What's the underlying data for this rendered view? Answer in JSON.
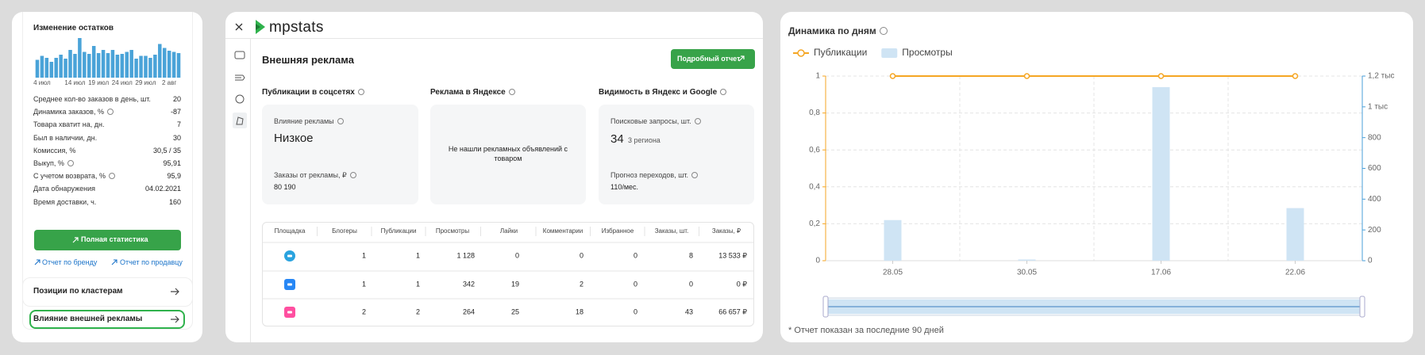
{
  "stock_panel": {
    "title": "Изменение остатков",
    "mini_chart": {
      "color": "#4aa3d8",
      "categories": [
        null,
        "4 июл",
        null,
        null,
        null,
        null,
        null,
        null,
        "14 июл",
        null,
        null,
        null,
        null,
        "19 июл",
        null,
        null,
        null,
        null,
        "24 июл",
        null,
        null,
        null,
        null,
        "29 июл",
        null,
        null,
        null,
        null,
        "2 авг",
        null,
        null
      ],
      "values": [
        45,
        55,
        50,
        40,
        50,
        58,
        48,
        70,
        60,
        100,
        65,
        60,
        80,
        62,
        70,
        62,
        70,
        58,
        60,
        65,
        70,
        48,
        55,
        55,
        50,
        58,
        85,
        75,
        68,
        65,
        62
      ]
    },
    "stats": [
      {
        "label": "Среднее кол-во заказов в день, шт.",
        "value": "20",
        "info": false
      },
      {
        "label": "Динамика заказов, %",
        "value": "-87",
        "info": true
      },
      {
        "label": "Товара хватит на, дн.",
        "value": "7",
        "info": false
      },
      {
        "label": "Был в наличии, дн.",
        "value": "30",
        "info": false
      },
      {
        "label": "Комиссия, %",
        "value": "30,5 / 35",
        "info": false
      },
      {
        "label": "Выкуп, %",
        "value": "95,91",
        "info": true
      },
      {
        "label": "С учетом возврата, %",
        "value": "95,9",
        "info": true
      },
      {
        "label": "Дата обнаружения",
        "value": "04.02.2021",
        "info": false
      },
      {
        "label": "Время доставки, ч.",
        "value": "160",
        "info": false
      }
    ],
    "button": "Полная статистика",
    "links": [
      "Отчет по бренду",
      "Отчет по продавцу"
    ],
    "sections": [
      "Позиции по кластерам",
      "Влияние внешней рекламы"
    ]
  },
  "ad_panel": {
    "logo": "mpstats",
    "title": "Внешняя реклама",
    "report_button": "Подробный отчет",
    "cards": [
      {
        "heading": "Публикации в соцсетях",
        "label1": "Влияние рекламы",
        "value1": "Низкое",
        "label2": "Заказы от рекламы, ₽",
        "value2": "80 190"
      },
      {
        "heading": "Реклама в Яндексе",
        "message": "Не нашли рекламных объявлений с товаром"
      },
      {
        "heading": "Видимость в Яндекс и Google",
        "label1": "Поисковые запросы, шт.",
        "value1": "34",
        "note": "3 региона",
        "label2": "Прогноз переходов, шт.",
        "value2": "110/мес."
      }
    ],
    "table": {
      "header": [
        "Площадка",
        "Блогеры",
        "Публикации",
        "Просмотры",
        "Лайки",
        "Комментарии",
        "Избранное",
        "Заказы, шт.",
        "Заказы, ₽"
      ],
      "rows": [
        [
          "1",
          "1",
          "1 128",
          "0",
          "0",
          "0",
          "8",
          "13 533 ₽"
        ],
        [
          "1",
          "1",
          "342",
          "19",
          "2",
          "0",
          "0",
          "0 ₽"
        ],
        [
          "2",
          "2",
          "264",
          "25",
          "18",
          "0",
          "43",
          "66 657 ₽"
        ]
      ]
    }
  },
  "chart_data": {
    "type": "bar",
    "title": "Динамика по дням",
    "categories": [
      "28.05",
      "30.05",
      "17.06",
      "22.06"
    ],
    "series": [
      {
        "name": "Публикации",
        "type": "line",
        "color": "#f5a623",
        "values": [
          1,
          1,
          1,
          1
        ]
      },
      {
        "name": "Просмотры",
        "type": "bar",
        "axis": "y2",
        "color": "#cfe4f4",
        "values": [
          264,
          8,
          1128,
          342
        ]
      }
    ],
    "ylim": [
      0,
      1
    ],
    "yticks": [
      0,
      {
        "value": 0.2,
        "label": "0,2"
      },
      {
        "value": 0.4,
        "label": "0,4"
      },
      {
        "value": 0.6,
        "label": "0,6"
      },
      {
        "value": 0.8,
        "label": "0,8"
      },
      1
    ],
    "y2lim": [
      0,
      1200
    ],
    "y2ticks": [
      0,
      200,
      400,
      600,
      800,
      {
        "value": 1000,
        "label": "1 тыс"
      },
      {
        "value": 1200,
        "label": "1,2 тыс"
      }
    ],
    "grid": true,
    "footnote": "* Отчет показан за последние 90 дней"
  }
}
